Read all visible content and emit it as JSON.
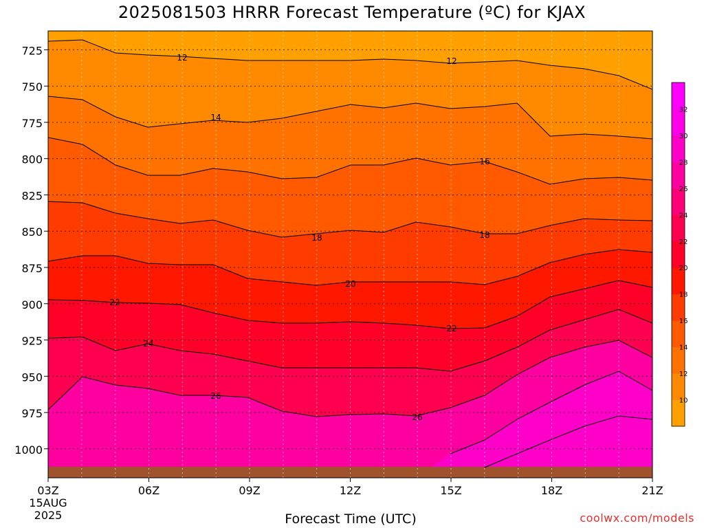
{
  "chart_data": {
    "type": "heatmap",
    "title": "2025081503 HRRR Forecast Temperature (ºC) for KJAX",
    "xlabel": "Forecast Time (UTC)",
    "x_ticks": [
      "03Z",
      "06Z",
      "09Z",
      "12Z",
      "15Z",
      "18Z",
      "21Z"
    ],
    "x_start_date": [
      "15AUG",
      "2025"
    ],
    "x_hours": [
      3,
      21
    ],
    "y_ticks": [
      725,
      750,
      775,
      800,
      825,
      850,
      875,
      900,
      925,
      950,
      975,
      1000
    ],
    "y_range_hpa": [
      712,
      1020
    ],
    "grid": true,
    "colorbar": {
      "levels": [
        8,
        10,
        12,
        14,
        16,
        18,
        20,
        22,
        24,
        26,
        28,
        30,
        32,
        34
      ],
      "labels": [
        "10",
        "12",
        "14",
        "16",
        "18",
        "20",
        "22",
        "24",
        "26",
        "28",
        "30",
        "32"
      ],
      "colors": [
        "#ffa000",
        "#ff8a00",
        "#ff7200",
        "#ff5a00",
        "#ff3c00",
        "#ff1800",
        "#ff0028",
        "#ff0050",
        "#ff0078",
        "#ff00a0",
        "#ff00c8",
        "#ff00e8",
        "#ff00ff"
      ]
    },
    "contour_labels": [
      "12",
      "12",
      "14",
      "16",
      "18",
      "18",
      "20",
      "22",
      "22",
      "24",
      "26",
      "26"
    ]
  },
  "credit": "coolwx.com/models"
}
